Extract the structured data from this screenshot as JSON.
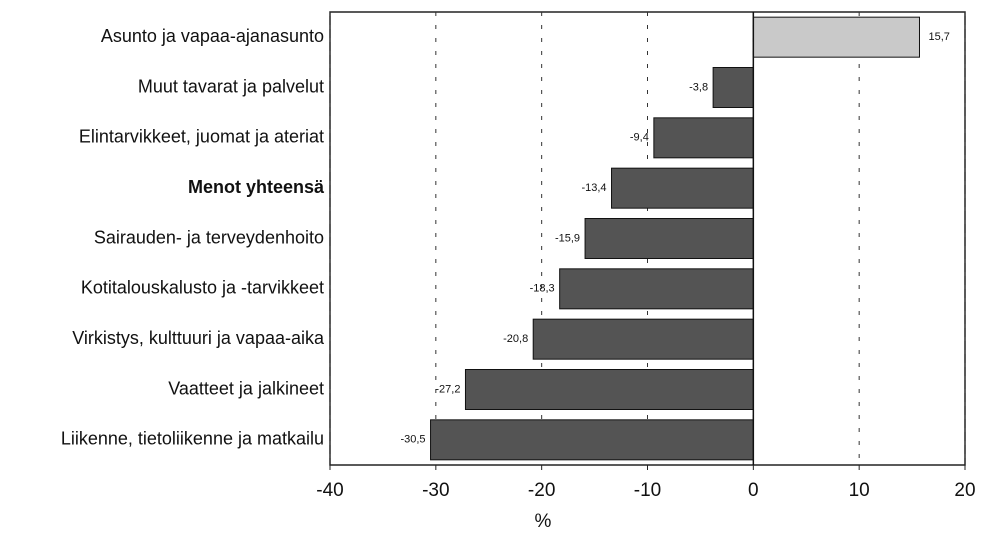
{
  "chart_data": {
    "type": "hbar",
    "axis_label": "%",
    "categories": [
      "Asunto ja vapaa-ajanasunto",
      "Muut tavarat ja palvelut",
      "Elintarvikkeet, juomat ja ateriat",
      "Menot yhteensä",
      "Sairauden- ja terveydenhoito",
      "Kotitalouskalusto ja -tarvikkeet",
      "Virkistys, kulttuuri ja vapaa-aika",
      "Vaatteet ja jalkineet",
      "Liikenne, tietoliikenne ja matkailu"
    ],
    "values": [
      15.7,
      -3.8,
      -9.4,
      -13.4,
      -15.9,
      -18.3,
      -20.8,
      -27.2,
      -30.5
    ],
    "value_labels": [
      "15,7",
      "-3,8",
      "-9,4",
      "-13,4",
      "-15,9",
      "-18,3",
      "-20,8",
      "-27,2",
      "-30,5"
    ],
    "colors": [
      "#c9c9c9",
      "#545454",
      "#545454",
      "#545454",
      "#545454",
      "#545454",
      "#545454",
      "#545454",
      "#545454"
    ],
    "xlim": [
      -40,
      20
    ],
    "xticks": [
      -40,
      -30,
      -20,
      -10,
      0,
      10,
      20
    ],
    "grid": true
  }
}
